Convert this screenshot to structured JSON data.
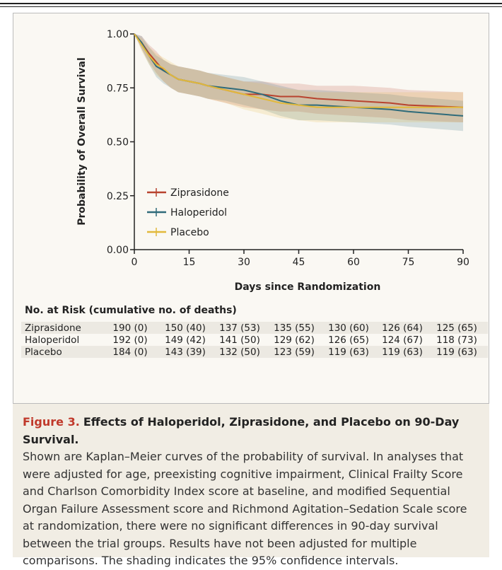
{
  "chart_data": {
    "type": "line",
    "ylabel": "Probability of Overall Survival",
    "xlabel": "Days since Randomization",
    "xlim": [
      0,
      90
    ],
    "xticks": [
      0,
      15,
      30,
      45,
      60,
      75,
      90
    ],
    "ylim": [
      0,
      1
    ],
    "yticks": [
      {
        "value": 0,
        "label": "0.00"
      },
      {
        "value": 0.25,
        "label": "0.25"
      },
      {
        "value": 0.5,
        "label": "0.50"
      },
      {
        "value": 0.75,
        "label": "0.75"
      },
      {
        "value": 1,
        "label": "1.00"
      }
    ],
    "x": [
      0,
      2,
      4,
      6,
      8,
      10,
      12,
      15,
      18,
      20,
      25,
      30,
      35,
      40,
      45,
      50,
      60,
      70,
      75,
      90
    ],
    "series": [
      {
        "name": "Ziprasidone",
        "color": "#b8432f",
        "values": [
          1,
          0.96,
          0.91,
          0.87,
          0.83,
          0.81,
          0.79,
          0.78,
          0.77,
          0.76,
          0.74,
          0.72,
          0.72,
          0.71,
          0.71,
          0.7,
          0.69,
          0.68,
          0.67,
          0.66
        ],
        "ci_lower": [
          1,
          0.93,
          0.87,
          0.82,
          0.78,
          0.75,
          0.73,
          0.72,
          0.71,
          0.7,
          0.68,
          0.66,
          0.65,
          0.64,
          0.64,
          0.63,
          0.62,
          0.61,
          0.6,
          0.59
        ],
        "ci_upper": [
          1,
          0.99,
          0.95,
          0.92,
          0.88,
          0.86,
          0.85,
          0.84,
          0.83,
          0.82,
          0.8,
          0.78,
          0.78,
          0.77,
          0.77,
          0.76,
          0.76,
          0.75,
          0.74,
          0.73
        ]
      },
      {
        "name": "Haloperidol",
        "color": "#2f6b7a",
        "values": [
          1,
          0.96,
          0.9,
          0.85,
          0.83,
          0.81,
          0.79,
          0.78,
          0.77,
          0.76,
          0.75,
          0.74,
          0.72,
          0.69,
          0.67,
          0.67,
          0.66,
          0.65,
          0.64,
          0.62
        ],
        "ci_lower": [
          1,
          0.93,
          0.86,
          0.8,
          0.77,
          0.75,
          0.73,
          0.72,
          0.71,
          0.7,
          0.69,
          0.67,
          0.65,
          0.62,
          0.6,
          0.6,
          0.59,
          0.58,
          0.57,
          0.55
        ],
        "ci_upper": [
          1,
          0.99,
          0.94,
          0.9,
          0.88,
          0.86,
          0.85,
          0.84,
          0.83,
          0.82,
          0.81,
          0.8,
          0.78,
          0.76,
          0.74,
          0.74,
          0.73,
          0.72,
          0.71,
          0.69
        ]
      },
      {
        "name": "Placebo",
        "color": "#e2b93b",
        "values": [
          1,
          0.95,
          0.9,
          0.86,
          0.84,
          0.81,
          0.79,
          0.78,
          0.77,
          0.76,
          0.74,
          0.72,
          0.7,
          0.68,
          0.67,
          0.66,
          0.66,
          0.66,
          0.66,
          0.66
        ],
        "ci_lower": [
          1,
          0.92,
          0.86,
          0.81,
          0.78,
          0.75,
          0.73,
          0.72,
          0.71,
          0.7,
          0.68,
          0.65,
          0.63,
          0.61,
          0.6,
          0.59,
          0.59,
          0.59,
          0.59,
          0.59
        ],
        "ci_upper": [
          1,
          0.98,
          0.94,
          0.91,
          0.89,
          0.87,
          0.85,
          0.84,
          0.83,
          0.82,
          0.8,
          0.78,
          0.77,
          0.75,
          0.74,
          0.73,
          0.73,
          0.73,
          0.73,
          0.73
        ]
      }
    ],
    "risk_table": {
      "title": "No. at Risk (cumulative no. of deaths)",
      "rows": [
        {
          "name": "Ziprasidone",
          "values": [
            "190 (0)",
            "150 (40)",
            "137 (53)",
            "135 (55)",
            "130 (60)",
            "126 (64)",
            "125 (65)"
          ]
        },
        {
          "name": "Haloperidol",
          "values": [
            "192 (0)",
            "149 (42)",
            "141 (50)",
            "129 (62)",
            "126 (65)",
            "124 (67)",
            "118 (73)"
          ]
        },
        {
          "name": "Placebo",
          "values": [
            "184 (0)",
            "143 (39)",
            "132 (50)",
            "123 (59)",
            "119 (63)",
            "119 (63)",
            "119 (63)"
          ]
        }
      ]
    }
  },
  "caption": {
    "label": "Figure 3.",
    "title": "Effects of Haloperidol, Ziprasidone, and Placebo on 90-Day Survival.",
    "text": "Shown are Kaplan–Meier curves of the probability of survival. In analyses that were adjusted for age, preexisting cognitive impairment, Clinical Frailty Score and Charlson Comorbidity Index score at baseline, and modified Sequential Organ Failure Assessment score and Richmond Agitation–Sedation Scale score at randomization, there were no significant differences in 90-day survival between the trial groups. Results have not been adjusted for multiple comparisons. The shading indicates the 95% confidence intervals."
  }
}
